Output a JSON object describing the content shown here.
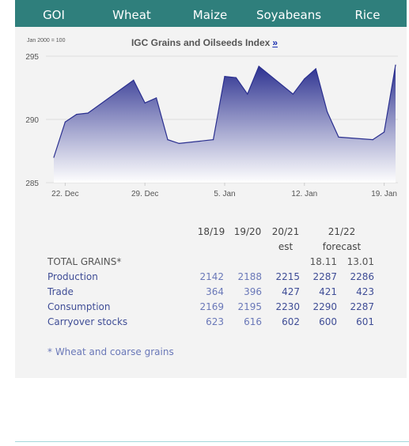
{
  "tabs": [
    "GOI",
    "Wheat",
    "Maize",
    "Soyabeans",
    "Rice"
  ],
  "chart": {
    "index_note": "Jan 2000 = 100",
    "title": "IGC Grains and Oilseeds Index",
    "title_link": "»"
  },
  "chart_data": {
    "type": "area",
    "title": "IGC Grains and Oilseeds Index",
    "ylim": [
      285,
      295
    ],
    "yticks": [
      "295",
      "290",
      "285"
    ],
    "xticks": [
      "22. Dec",
      "29. Dec",
      "5. Jan",
      "12. Jan",
      "19. Jan"
    ],
    "grid": true,
    "colors": {
      "top": "#2a2f8f",
      "bottom": "#ffffff",
      "line": "#2a2f8f"
    },
    "series": [
      {
        "points": [
          [
            "2020-12-21",
            287.0
          ],
          [
            "2020-12-22",
            289.8
          ],
          [
            "2020-12-23",
            290.4
          ],
          [
            "2020-12-24",
            290.5
          ],
          [
            "2020-12-28",
            293.1
          ],
          [
            "2020-12-29",
            291.3
          ],
          [
            "2020-12-30",
            291.7
          ],
          [
            "2020-12-31",
            288.4
          ],
          [
            "2021-01-01",
            288.1
          ],
          [
            "2021-01-04",
            288.4
          ],
          [
            "2021-01-05",
            293.4
          ],
          [
            "2021-01-06",
            293.3
          ],
          [
            "2021-01-07",
            292.0
          ],
          [
            "2021-01-08",
            294.2
          ],
          [
            "2021-01-11",
            292.0
          ],
          [
            "2021-01-12",
            293.2
          ],
          [
            "2021-01-13",
            294.0
          ],
          [
            "2021-01-14",
            290.6
          ],
          [
            "2021-01-15",
            288.6
          ],
          [
            "2021-01-18",
            288.4
          ],
          [
            "2021-01-19",
            289.0
          ],
          [
            "2021-01-20",
            294.3
          ]
        ]
      }
    ]
  },
  "table": {
    "col_headers": [
      "18/19",
      "19/20",
      "20/21",
      "21/22"
    ],
    "sub_headers": [
      "est",
      "forecast"
    ],
    "forecast_dates": [
      "18.11",
      "13.01"
    ],
    "total_label": "TOTAL GRAINS*",
    "rows": [
      {
        "label": "Production",
        "values": [
          "2142",
          "2188",
          "2215",
          "2287",
          "2286"
        ]
      },
      {
        "label": "Trade",
        "values": [
          "364",
          "396",
          "427",
          "421",
          "423"
        ]
      },
      {
        "label": "Consumption",
        "values": [
          "2169",
          "2195",
          "2230",
          "2290",
          "2287"
        ]
      },
      {
        "label": "Carryover stocks",
        "values": [
          "623",
          "616",
          "602",
          "600",
          "601"
        ]
      }
    ],
    "footnote": "* Wheat and coarse grains"
  }
}
